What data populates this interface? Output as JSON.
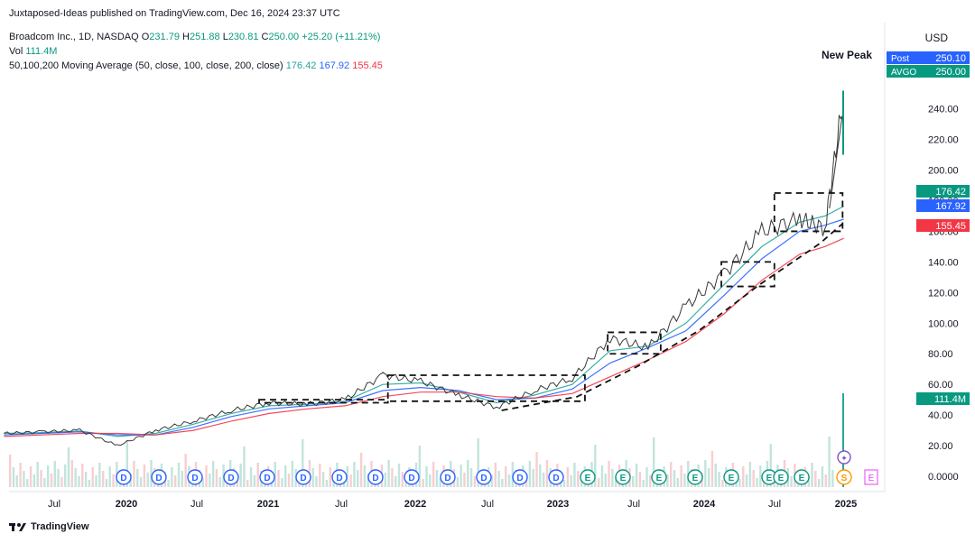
{
  "header": {
    "published": "Juxtaposed-Ideas published on TradingView.com, Dec 16, 2024 23:37 UTC",
    "symbol": "Broadcom Inc., 1D, NASDAQ",
    "ohlc": {
      "open_label": "O",
      "open": "231.79",
      "high_label": "H",
      "high": "251.88",
      "low_label": "L",
      "low": "230.81",
      "close_label": "C",
      "close": "250.00",
      "change": "+25.20 (+11.21%)"
    },
    "vol_label": "Vol",
    "vol_value": "111.4M",
    "ma_label": "50,100,200 Moving Average (50, close, 100, close, 200, close)",
    "ma_values": [
      "176.42",
      "167.92",
      "155.45"
    ]
  },
  "currency": "USD",
  "annotation_new_peak": "New Peak",
  "price_tags": {
    "post_label": "Post",
    "post_value": "250.10",
    "ticker_label": "AVGO",
    "ticker_value": "250.00",
    "ma50": "176.42",
    "ma100": "167.92",
    "ma200": "155.45",
    "volume": "111.4M"
  },
  "colors": {
    "up": "#089981",
    "down": "#f23645",
    "ma50": "#26a69a",
    "ma100": "#2962ff",
    "ma200": "#f23645",
    "post": "#2962ff"
  },
  "footer_logo": "TradingView",
  "chart_data": {
    "type": "line",
    "y_axis_ticks": [
      "0.0000",
      "20.00",
      "40.00",
      "60.00",
      "80.00",
      "100.00",
      "120.00",
      "140.00",
      "160.00",
      "180.00",
      "200.00",
      "220.00",
      "240.00"
    ],
    "x_axis_ticks": [
      "Jul",
      "2020",
      "Jul",
      "2021",
      "Jul",
      "2022",
      "Jul",
      "2023",
      "Jul",
      "2024",
      "Jul",
      "2025"
    ],
    "ylim": [
      0,
      260
    ],
    "events": {
      "dividend_marker": "D",
      "earnings_marker": "E",
      "split_marker": "S",
      "sequence": [
        "D",
        "D",
        "D",
        "D",
        "D",
        "D",
        "D",
        "D",
        "D",
        "D",
        "D",
        "D",
        "D",
        "E",
        "E",
        "E",
        "E",
        "E",
        "E",
        "E",
        "E",
        "S",
        "E",
        "E"
      ]
    },
    "series": [
      {
        "name": "AVGO",
        "x": [
          "2019-06",
          "2019-09",
          "2019-12",
          "2020-03",
          "2020-06",
          "2020-09",
          "2020-12",
          "2021-03",
          "2021-06",
          "2021-09",
          "2021-12",
          "2022-03",
          "2022-06",
          "2022-09",
          "2022-12",
          "2023-03",
          "2023-06",
          "2023-09",
          "2023-12",
          "2024-03",
          "2024-06",
          "2024-09",
          "2024-11",
          "2024-12-16"
        ],
        "values": [
          28,
          29,
          30,
          20,
          30,
          36,
          43,
          48,
          47,
          50,
          66,
          62,
          53,
          45,
          56,
          64,
          90,
          84,
          111,
          132,
          160,
          168,
          162,
          250
        ]
      },
      {
        "name": "MA50",
        "values": [
          28,
          28.5,
          29.5,
          26,
          28,
          34,
          41,
          46,
          47,
          49,
          60,
          61,
          55,
          48,
          53,
          60,
          82,
          85,
          100,
          125,
          150,
          166,
          170,
          176.42
        ]
      },
      {
        "name": "MA100",
        "values": [
          27,
          28,
          29,
          27,
          27,
          32,
          39,
          44,
          46,
          48,
          56,
          58,
          56,
          50,
          51,
          57,
          74,
          84,
          95,
          118,
          142,
          160,
          164,
          167.92
        ]
      },
      {
        "name": "MA200",
        "values": [
          26,
          27,
          28,
          28,
          27,
          30,
          36,
          41,
          44,
          46,
          52,
          55,
          55,
          52,
          51,
          54,
          65,
          76,
          88,
          106,
          128,
          145,
          150,
          155.45
        ]
      }
    ],
    "grid": false
  }
}
